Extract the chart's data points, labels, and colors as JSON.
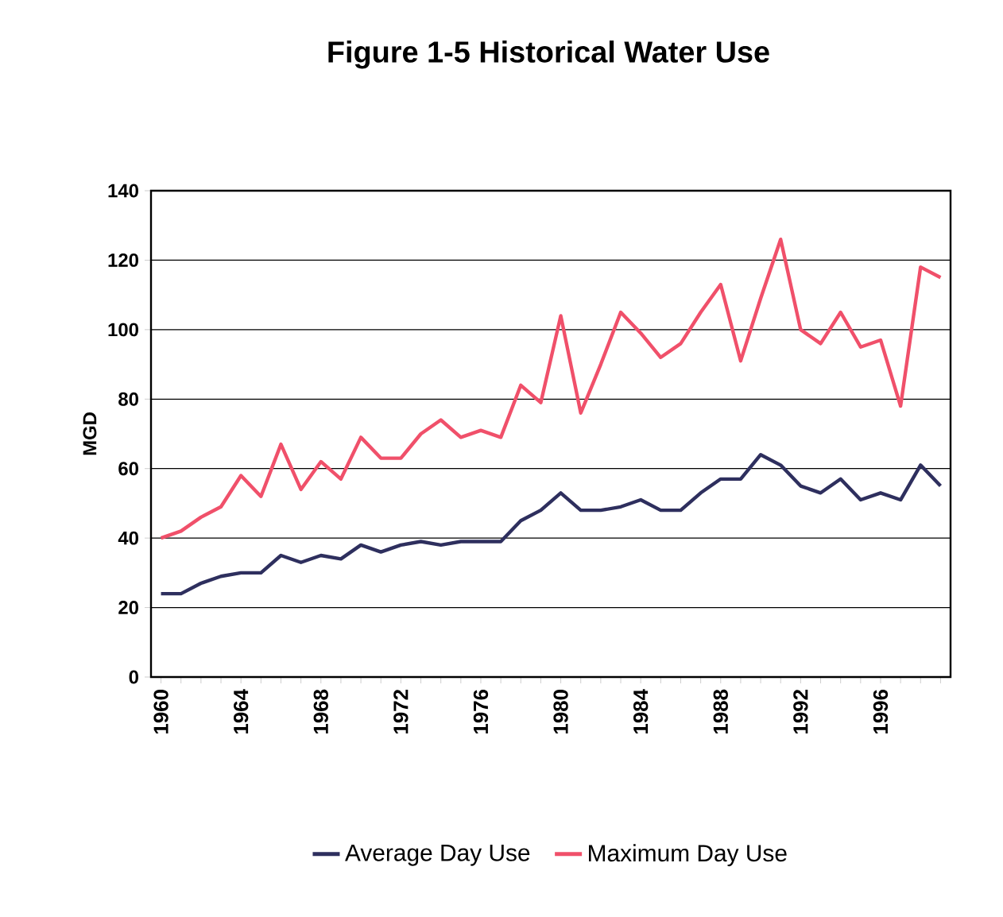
{
  "chart_data": {
    "type": "line",
    "title": "Figure 1-5 Historical Water Use",
    "ylabel": "MGD",
    "categories": [
      "1960",
      null,
      null,
      null,
      "1964",
      null,
      null,
      null,
      "1968",
      null,
      null,
      null,
      "1972",
      null,
      null,
      null,
      "1976",
      null,
      null,
      null,
      "1980",
      null,
      null,
      null,
      "1984",
      null,
      null,
      null,
      "1988",
      null,
      null,
      null,
      "1992",
      null,
      null,
      null,
      "1996",
      null,
      null,
      null
    ],
    "series": [
      {
        "name": "Average Day Use",
        "color": "#2e2f5e",
        "values": [
          24,
          24,
          27,
          29,
          30,
          30,
          35,
          33,
          35,
          34,
          38,
          36,
          38,
          39,
          38,
          39,
          39,
          39,
          45,
          48,
          53,
          48,
          48,
          49,
          51,
          48,
          48,
          53,
          57,
          57,
          64,
          61,
          55,
          53,
          57,
          51,
          53,
          51,
          61,
          55
        ]
      },
      {
        "name": "Maximum Day Use",
        "color": "#f0506a",
        "values": [
          40,
          42,
          46,
          49,
          58,
          52,
          67,
          54,
          62,
          57,
          69,
          63,
          63,
          70,
          74,
          69,
          71,
          69,
          84,
          79,
          104,
          76,
          90,
          105,
          99,
          92,
          96,
          105,
          113,
          91,
          109,
          126,
          100,
          96,
          105,
          95,
          97,
          78,
          118,
          115
        ]
      }
    ],
    "ylim": [
      0,
      140
    ],
    "yticks": [
      0,
      20,
      40,
      60,
      80,
      100,
      120,
      140
    ],
    "grid": "y",
    "legend": "bottom",
    "line_style": "solid",
    "marker": "none"
  }
}
